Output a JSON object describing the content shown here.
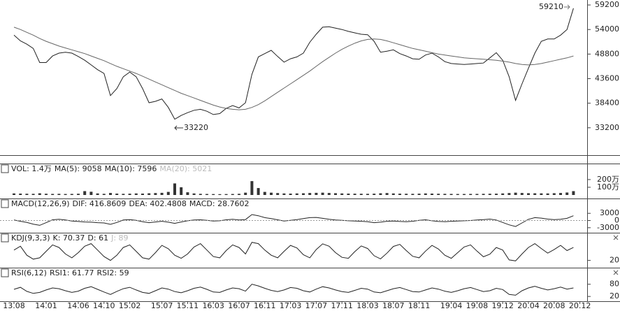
{
  "chart_data": [
    {
      "type": "line",
      "categories": [
        "13.08",
        null,
        null,
        null,
        null,
        "14.01",
        null,
        null,
        null,
        null,
        "14.06",
        null,
        null,
        null,
        "14.10",
        null,
        null,
        null,
        "15.02",
        null,
        null,
        null,
        null,
        "15.07",
        null,
        null,
        null,
        "15.11",
        null,
        null,
        null,
        "16.03",
        null,
        null,
        null,
        "16.07",
        null,
        null,
        null,
        "16.11",
        null,
        null,
        null,
        "17.03",
        null,
        null,
        null,
        "17.07",
        null,
        null,
        null,
        "17.11",
        null,
        null,
        null,
        "18.03",
        null,
        null,
        null,
        "18.07",
        null,
        null,
        null,
        "18.11",
        null,
        null,
        null,
        null,
        "19.04",
        null,
        null,
        null,
        "19.08",
        null,
        null,
        null,
        "19.12",
        null,
        null,
        null,
        "20.04",
        null,
        null,
        null,
        "20.08",
        null,
        null,
        null,
        "20.12"
      ],
      "series": [
        {
          "color": "#222222",
          "values": [
            52800,
            51600,
            50900,
            50000,
            47000,
            47000,
            48400,
            49000,
            49200,
            49000,
            48300,
            47500,
            46500,
            45500,
            44700,
            40000,
            41500,
            44000,
            45000,
            44000,
            41500,
            38500,
            38800,
            39300,
            37500,
            35000,
            35800,
            36400,
            36900,
            37100,
            36700,
            36000,
            36200,
            37300,
            37900,
            37400,
            38500,
            44500,
            48200,
            48900,
            49600,
            48300,
            47100,
            47800,
            48200,
            49000,
            51300,
            53000,
            54500,
            54600,
            54300,
            54000,
            53600,
            53300,
            53000,
            52900,
            51500,
            49200,
            49400,
            49700,
            48900,
            48400,
            47800,
            47700,
            48600,
            49000,
            48200,
            47200,
            46800,
            46700,
            46600,
            46700,
            46800,
            46900,
            48000,
            49100,
            47500,
            44000,
            39000,
            42500,
            45800,
            49000,
            51500,
            52000,
            52000,
            52800,
            54000,
            58500,
            null
          ]
        },
        {
          "color": "#666666",
          "values": [
            54500,
            54000,
            53400,
            52800,
            52100,
            51500,
            51000,
            50500,
            50100,
            49700,
            49300,
            48900,
            48400,
            47900,
            47400,
            46800,
            46200,
            45700,
            45200,
            44700,
            44100,
            43500,
            42900,
            42300,
            41700,
            41100,
            40500,
            40000,
            39500,
            39000,
            38500,
            38000,
            37600,
            37300,
            37100,
            37000,
            37100,
            37500,
            38100,
            38900,
            39800,
            40700,
            41600,
            42500,
            43400,
            44300,
            45200,
            46200,
            47200,
            48100,
            49000,
            49800,
            50500,
            51100,
            51600,
            51900,
            52000,
            51900,
            51600,
            51200,
            50800,
            50400,
            50000,
            49700,
            49400,
            49100,
            48800,
            48600,
            48400,
            48200,
            48000,
            47900,
            47800,
            47700,
            47600,
            47500,
            47300,
            47100,
            46800,
            46600,
            46500,
            46600,
            46800,
            47100,
            47400,
            47700,
            48000,
            48400,
            null
          ]
        }
      ],
      "ylim": [
        27400,
        60250
      ],
      "yticks": [
        33200,
        38400,
        43600,
        48800,
        54000,
        59200
      ],
      "annotations": [
        "59210",
        "33220"
      ]
    },
    {
      "type": "bar",
      "header": [
        "VOL: 1.4万",
        "MA(5): 9058",
        "MA(10): 7596",
        "MA(20): 5021"
      ],
      "color": "#333333",
      "values": [
        200000,
        180000,
        160000,
        150000,
        220000,
        160000,
        140000,
        150000,
        130000,
        140000,
        160000,
        500000,
        420000,
        200000,
        150000,
        260000,
        180000,
        150000,
        170000,
        200000,
        180000,
        220000,
        250000,
        280000,
        400000,
        1500000,
        1000000,
        350000,
        200000,
        150000,
        130000,
        120000,
        110000,
        120000,
        130000,
        150000,
        300000,
        1800000,
        900000,
        400000,
        300000,
        250000,
        200000,
        180000,
        200000,
        220000,
        260000,
        280000,
        300000,
        260000,
        230000,
        200000,
        180000,
        170000,
        160000,
        150000,
        170000,
        220000,
        250000,
        200000,
        170000,
        160000,
        150000,
        170000,
        200000,
        180000,
        160000,
        150000,
        140000,
        130000,
        130000,
        140000,
        140000,
        150000,
        160000,
        170000,
        200000,
        250000,
        300000,
        260000,
        230000,
        220000,
        210000,
        200000,
        230000,
        260000,
        320000,
        500000,
        null
      ],
      "ylim": [
        0,
        2900000
      ],
      "yticks": [
        {
          "value": 1000000,
          "label": "100万"
        },
        {
          "value": 2000000,
          "label": "200万"
        }
      ]
    },
    {
      "type": "line",
      "header": [
        "MACD(12,26,9)",
        "DIF: 416.8609",
        "DEA: 402.4808",
        "MACD: 28.7602"
      ],
      "series": [
        {
          "color": "#222222",
          "values": [
            200,
            -300,
            -800,
            -1500,
            -2000,
            -900,
            300,
            500,
            200,
            -200,
            -400,
            -600,
            -700,
            -900,
            -1000,
            -1600,
            -800,
            200,
            400,
            100,
            -500,
            -900,
            -600,
            -300,
            -700,
            -1200,
            -600,
            -100,
            200,
            300,
            100,
            -200,
            -100,
            300,
            500,
            200,
            400,
            2500,
            2000,
            1200,
            800,
            300,
            -200,
            100,
            400,
            800,
            1200,
            1300,
            900,
            500,
            200,
            100,
            -100,
            -200,
            -300,
            -500,
            -900,
            -700,
            -300,
            -200,
            -400,
            -500,
            -300,
            100,
            300,
            -100,
            -400,
            -500,
            -300,
            -200,
            -100,
            0,
            200,
            400,
            600,
            200,
            -800,
            -1800,
            -2500,
            -1000,
            500,
            1200,
            1000,
            600,
            400,
            500,
            900,
            2000,
            null
          ]
        }
      ],
      "ylim": [
        -4800,
        5400
      ],
      "yticks": [
        3000,
        0,
        -3000
      ]
    },
    {
      "type": "line",
      "header": [
        "KDJ(9,3,3)",
        "K: 70.37",
        "D: 61",
        "J: 89"
      ],
      "series": [
        {
          "color": "#222222",
          "values": [
            60,
            75,
            40,
            25,
            30,
            55,
            80,
            70,
            45,
            30,
            50,
            75,
            85,
            60,
            35,
            20,
            40,
            70,
            80,
            55,
            30,
            25,
            50,
            78,
            65,
            40,
            28,
            45,
            72,
            85,
            60,
            35,
            30,
            58,
            80,
            70,
            45,
            90,
            85,
            60,
            40,
            30,
            55,
            78,
            68,
            42,
            30,
            62,
            84,
            75,
            50,
            32,
            28,
            54,
            76,
            66,
            38,
            26,
            48,
            74,
            82,
            58,
            36,
            30,
            56,
            78,
            64,
            40,
            28,
            50,
            72,
            80,
            56,
            34,
            44,
            70,
            60,
            22,
            18,
            45,
            70,
            85,
            66,
            48,
            62,
            78,
            58,
            70,
            null
          ]
        }
      ],
      "ylim": [
        0,
        100
      ],
      "yticks": [
        20
      ]
    },
    {
      "type": "line",
      "header": [
        "RSI(6,12)",
        "RSI1: 61.77",
        "RSI2: 59"
      ],
      "series": [
        {
          "color": "#222222",
          "values": [
            55,
            65,
            45,
            35,
            40,
            52,
            62,
            58,
            48,
            40,
            46,
            60,
            68,
            55,
            42,
            30,
            45,
            58,
            65,
            52,
            40,
            35,
            48,
            62,
            56,
            44,
            38,
            48,
            60,
            66,
            55,
            42,
            40,
            52,
            62,
            58,
            46,
            80,
            72,
            60,
            50,
            44,
            52,
            64,
            60,
            48,
            42,
            56,
            68,
            62,
            52,
            44,
            40,
            50,
            60,
            56,
            42,
            38,
            48,
            58,
            64,
            54,
            44,
            42,
            52,
            62,
            56,
            46,
            40,
            48,
            58,
            64,
            54,
            44,
            48,
            60,
            54,
            30,
            26,
            48,
            62,
            70,
            60,
            52,
            58,
            66,
            56,
            62,
            null
          ]
        }
      ],
      "ylim": [
        0,
        110
      ],
      "yticks": [
        80,
        20
      ]
    }
  ]
}
